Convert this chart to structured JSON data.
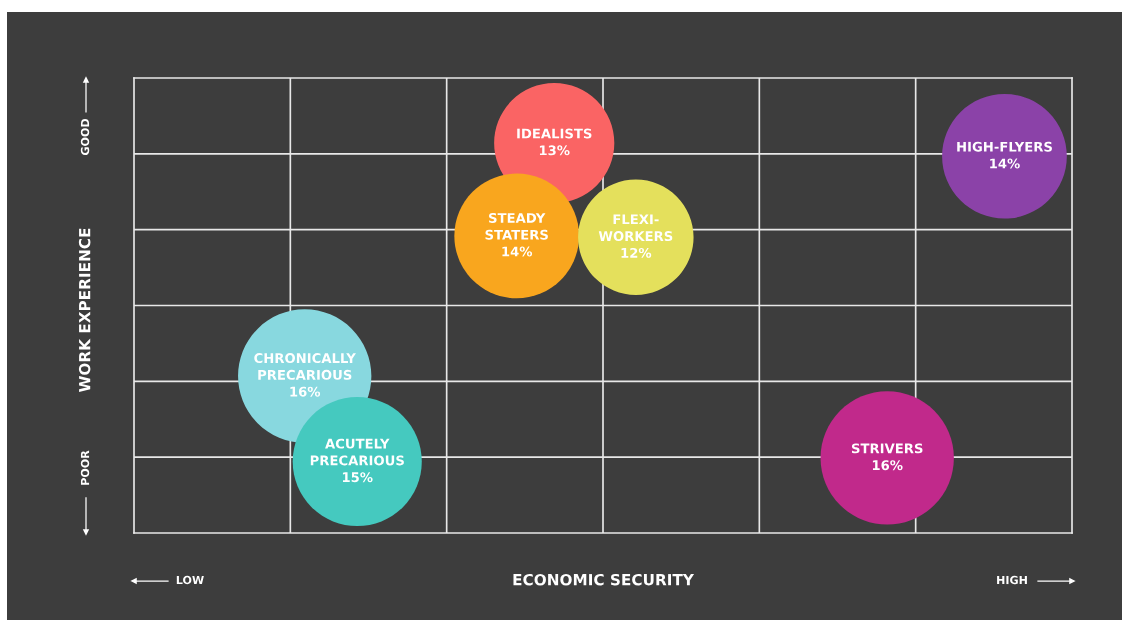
{
  "chart_data": {
    "type": "other",
    "xlabel": "ECONOMIC SECURITY",
    "ylabel": "WORK EXPERIENCE",
    "annotations": [
      "LOW",
      "HIGH",
      "POOR",
      "GOOD"
    ],
    "categories": [
      "IDEALISTS",
      "STEADY\nSTATERS",
      "FLEXI-\nWORKERS",
      "HIGH-FLYERS",
      "CHRONICALLY\nPRECARIOUS",
      "ACUTELY\nPRECARIOUS",
      "STRIVERS"
    ],
    "values": [
      13,
      14,
      12,
      14,
      16,
      15,
      16
    ],
    "value_labels": [
      "13%",
      "14%",
      "12%",
      "14%",
      "16%",
      "15%",
      "16%"
    ],
    "colors": [
      "#fa6464",
      "#f9a61e",
      "#e4e05c",
      "#8b42a8",
      "#88d8df",
      "#45c9bf",
      "#c1298b"
    ]
  }
}
